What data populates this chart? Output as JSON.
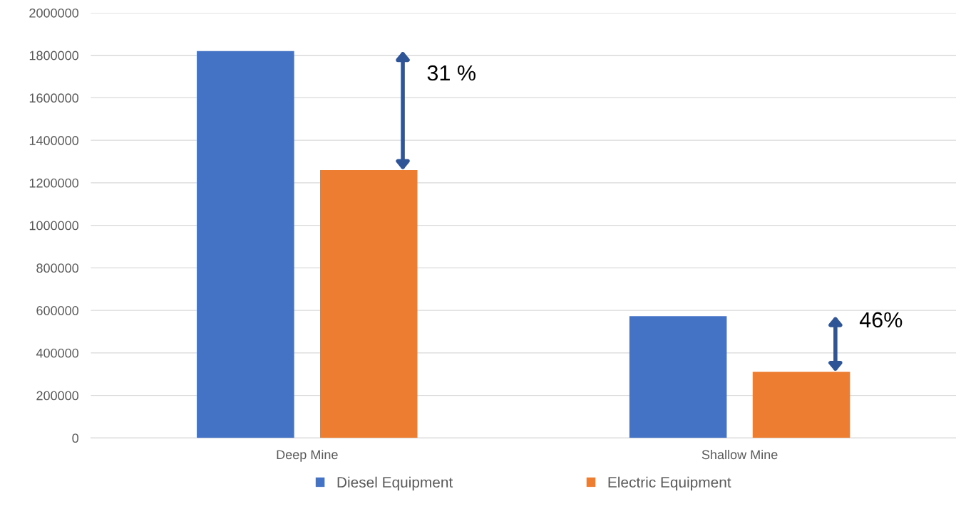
{
  "chart_data": {
    "type": "bar",
    "categories": [
      "Deep Mine",
      "Shallow Mine"
    ],
    "series": [
      {
        "name": "Diesel Equipment",
        "color": "#4472c4",
        "values": [
          1820000,
          573000
        ]
      },
      {
        "name": "Electric Equipment",
        "color": "#ed7d31",
        "values": [
          1260000,
          311000
        ]
      }
    ],
    "ylim": [
      0,
      2000000
    ],
    "yticks": [
      0,
      200000,
      400000,
      600000,
      800000,
      1000000,
      1200000,
      1400000,
      1600000,
      1800000,
      2000000
    ],
    "annotations": [
      "31 %",
      "46%"
    ],
    "grid": "y",
    "legend": "bottom"
  }
}
